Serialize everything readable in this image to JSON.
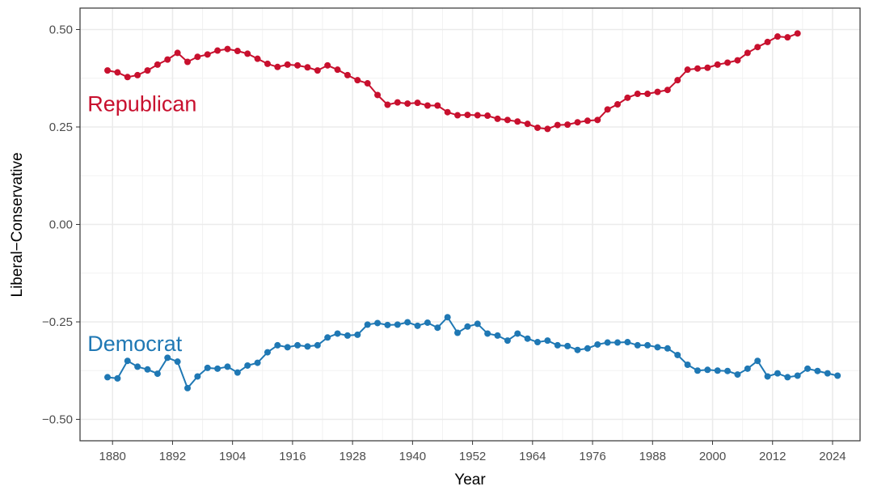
{
  "chart_data": {
    "type": "line",
    "title": "",
    "xlabel": "Year",
    "ylabel": "Liberal−Conservative",
    "xlim": [
      1873.5,
      2029.5
    ],
    "ylim": [
      -0.555,
      0.555
    ],
    "x_ticks": [
      {
        "value": 1880,
        "label": "1880"
      },
      {
        "value": 1892,
        "label": "1892"
      },
      {
        "value": 1904,
        "label": "1904"
      },
      {
        "value": 1916,
        "label": "1916"
      },
      {
        "value": 1928,
        "label": "1928"
      },
      {
        "value": 1940,
        "label": "1940"
      },
      {
        "value": 1952,
        "label": "1952"
      },
      {
        "value": 1964,
        "label": "1964"
      },
      {
        "value": 1976,
        "label": "1976"
      },
      {
        "value": 1988,
        "label": "1988"
      },
      {
        "value": 2000,
        "label": "2000"
      },
      {
        "value": 2012,
        "label": "2012"
      },
      {
        "value": 2024,
        "label": "2024"
      }
    ],
    "y_ticks": [
      {
        "value": 0.5,
        "label": "0.50"
      },
      {
        "value": 0.25,
        "label": "0.25"
      },
      {
        "value": 0.0,
        "label": "0.00"
      },
      {
        "value": -0.25,
        "label": "−0.25"
      },
      {
        "value": -0.5,
        "label": "−0.50"
      }
    ],
    "grid": true,
    "legend": "none",
    "series": [
      {
        "name": "Republican",
        "color": "#C8102E",
        "label_at": {
          "x": 1875,
          "y": 0.29
        },
        "x": [
          1879,
          1881,
          1883,
          1885,
          1887,
          1889,
          1891,
          1893,
          1895,
          1897,
          1899,
          1901,
          1903,
          1905,
          1907,
          1909,
          1911,
          1913,
          1915,
          1917,
          1919,
          1921,
          1923,
          1925,
          1927,
          1929,
          1931,
          1933,
          1935,
          1937,
          1939,
          1941,
          1943,
          1945,
          1947,
          1949,
          1951,
          1953,
          1955,
          1957,
          1959,
          1961,
          1963,
          1965,
          1967,
          1969,
          1971,
          1973,
          1975,
          1977,
          1979,
          1981,
          1983,
          1985,
          1987,
          1989,
          1991,
          1993,
          1995,
          1997,
          1999,
          2001,
          2003,
          2005,
          2007,
          2009,
          2011,
          2013,
          2015,
          2017
        ],
        "y": [
          0.395,
          0.39,
          0.378,
          0.383,
          0.395,
          0.41,
          0.423,
          0.44,
          0.417,
          0.43,
          0.436,
          0.446,
          0.45,
          0.445,
          0.438,
          0.425,
          0.412,
          0.404,
          0.41,
          0.408,
          0.403,
          0.395,
          0.408,
          0.397,
          0.383,
          0.37,
          0.362,
          0.332,
          0.307,
          0.313,
          0.31,
          0.312,
          0.305,
          0.305,
          0.288,
          0.28,
          0.281,
          0.28,
          0.279,
          0.271,
          0.268,
          0.264,
          0.258,
          0.248,
          0.245,
          0.255,
          0.256,
          0.262,
          0.266,
          0.268,
          0.295,
          0.308,
          0.325,
          0.335,
          0.335,
          0.34,
          0.345,
          0.37,
          0.397,
          0.4,
          0.402,
          0.41,
          0.415,
          0.421,
          0.44,
          0.455,
          0.468,
          0.482,
          0.48,
          0.49
        ]
      },
      {
        "name": "Democrat",
        "color": "#1F78B4",
        "label_at": {
          "x": 1875,
          "y": -0.325
        },
        "x": [
          1879,
          1881,
          1883,
          1885,
          1887,
          1889,
          1891,
          1893,
          1895,
          1897,
          1899,
          1901,
          1903,
          1905,
          1907,
          1909,
          1911,
          1913,
          1915,
          1917,
          1919,
          1921,
          1923,
          1925,
          1927,
          1929,
          1931,
          1933,
          1935,
          1937,
          1939,
          1941,
          1943,
          1945,
          1947,
          1949,
          1951,
          1953,
          1955,
          1957,
          1959,
          1961,
          1963,
          1965,
          1967,
          1969,
          1971,
          1973,
          1975,
          1977,
          1979,
          1981,
          1983,
          1985,
          1987,
          1989,
          1991,
          1993,
          1995,
          1997,
          1999,
          2001,
          2003,
          2005,
          2007,
          2009,
          2011,
          2013,
          2015,
          2017,
          2019,
          2021,
          2023,
          2025
        ],
        "y": [
          -0.392,
          -0.395,
          -0.35,
          -0.365,
          -0.372,
          -0.383,
          -0.342,
          -0.352,
          -0.42,
          -0.39,
          -0.368,
          -0.37,
          -0.365,
          -0.38,
          -0.362,
          -0.355,
          -0.328,
          -0.31,
          -0.315,
          -0.31,
          -0.313,
          -0.31,
          -0.29,
          -0.28,
          -0.285,
          -0.283,
          -0.257,
          -0.253,
          -0.258,
          -0.257,
          -0.251,
          -0.26,
          -0.252,
          -0.265,
          -0.238,
          -0.278,
          -0.262,
          -0.255,
          -0.28,
          -0.285,
          -0.298,
          -0.28,
          -0.293,
          -0.302,
          -0.298,
          -0.31,
          -0.312,
          -0.322,
          -0.318,
          -0.308,
          -0.303,
          -0.303,
          -0.302,
          -0.31,
          -0.31,
          -0.315,
          -0.318,
          -0.335,
          -0.36,
          -0.375,
          -0.373,
          -0.375,
          -0.376,
          -0.385,
          -0.37,
          -0.35,
          -0.39,
          -0.382,
          -0.392,
          -0.388,
          -0.37,
          -0.376,
          -0.382,
          -0.388
        ]
      }
    ]
  }
}
